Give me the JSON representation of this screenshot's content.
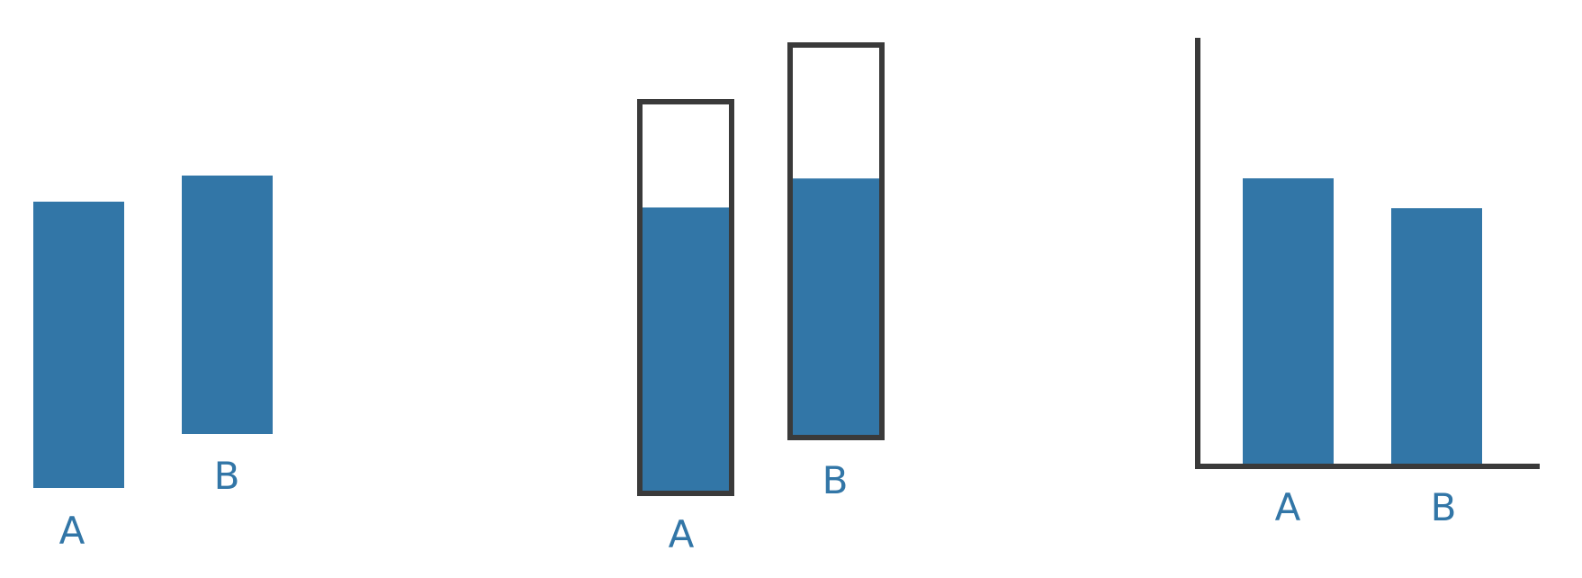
{
  "colors": {
    "bar": "#3276a7",
    "outline": "#3a3a3a",
    "label": "#3276a7",
    "background": "#ffffff"
  },
  "panels": [
    {
      "name": "floating-bars",
      "description_type": "unanchored bars",
      "bars": [
        {
          "label": "A"
        },
        {
          "label": "B"
        }
      ]
    },
    {
      "name": "container-bars",
      "description_type": "filled containers",
      "bars": [
        {
          "label": "A",
          "fill_fraction": 0.73
        },
        {
          "label": "B",
          "fill_fraction": 0.66
        }
      ]
    },
    {
      "name": "axis-bars",
      "description_type": "bars on common axis",
      "bars": [
        {
          "label": "A",
          "value": 0.67
        },
        {
          "label": "B",
          "value": 0.6
        }
      ]
    }
  ]
}
